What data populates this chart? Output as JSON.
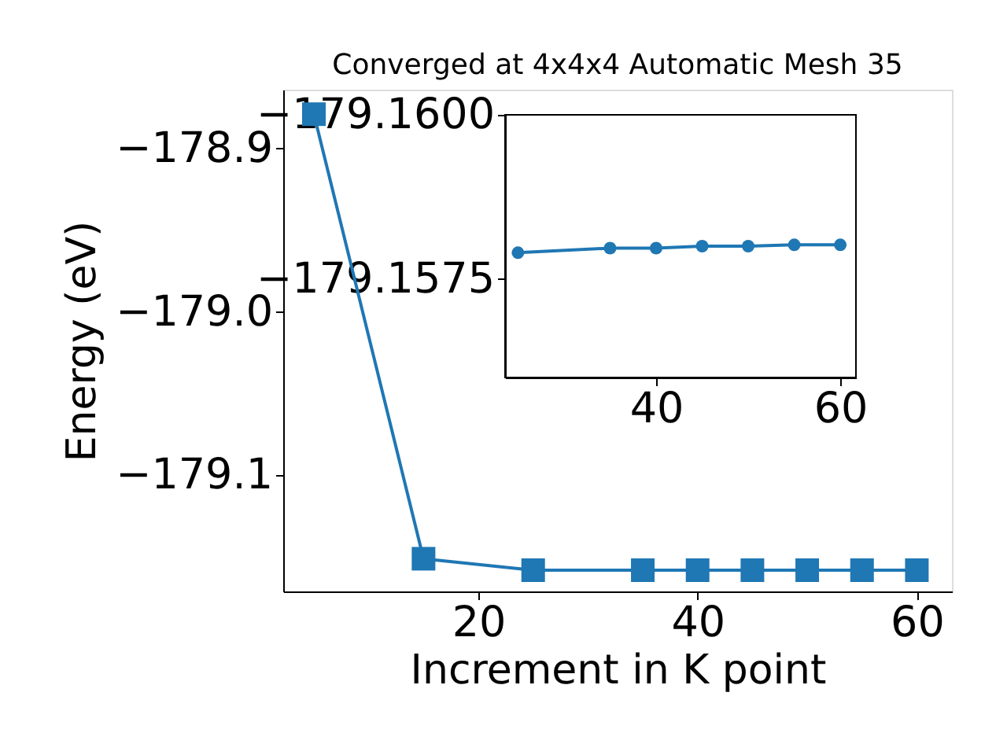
{
  "chart_data": [
    {
      "type": "line",
      "title": "Converged at 4x4x4 Automatic Mesh 35",
      "xlabel": "Increment in K point",
      "ylabel": "Energy (eV)",
      "marker": "square",
      "line_style": "solid",
      "grid": false,
      "xlim": [
        2.2,
        63.2
      ],
      "xticks": [
        20,
        40,
        60
      ],
      "ylim": [
        -179.171,
        -178.864
      ],
      "yticks": [
        -178.9,
        {
          "value": -179.0,
          "label": "−179.0"
        },
        -179.1
      ],
      "series": [
        {
          "color": "#1f77b4",
          "x": [
            5,
            15,
            25,
            35,
            40,
            45,
            50,
            55,
            60
          ],
          "values": [
            -178.879,
            -179.151,
            -179.158,
            -179.158,
            -179.158,
            -179.158,
            -179.158,
            -179.158,
            -179.158
          ]
        }
      ]
    },
    {
      "type": "line",
      "marker": "circle",
      "line_style": "solid",
      "grid": false,
      "xlim": [
        23.6,
        61.7
      ],
      "xticks": [
        40,
        60
      ],
      "ylim": [
        -179.156,
        -179.16
      ],
      "yticks": [
        {
          "value": -179.16,
          "label": "−179.1600"
        },
        {
          "value": -179.1575,
          "label": "−179.1575"
        }
      ],
      "series": [
        {
          "color": "#1f77b4",
          "x": [
            25,
            35,
            40,
            45,
            50,
            55,
            60
          ],
          "values": [
            -179.1579,
            -179.15797,
            -179.15797,
            -179.158,
            -179.158,
            -179.15802,
            -179.15802
          ]
        }
      ]
    }
  ]
}
